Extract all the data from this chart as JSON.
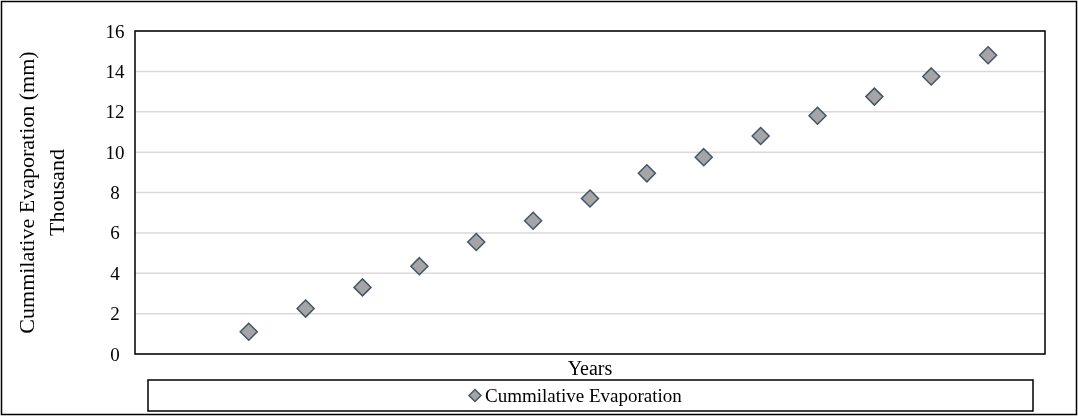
{
  "chart_data": {
    "type": "scatter",
    "xlabel": "Years",
    "ylabel": "Cummilative Evaporation (mm) Thousand",
    "categories": [
      null,
      null,
      null,
      null,
      null,
      null,
      null,
      null,
      null,
      null,
      null,
      null,
      null,
      null,
      null,
      null,
      null
    ],
    "series": [
      {
        "name": "Cummilative Evaporation",
        "color": "#a5a5a5",
        "values": [
          null,
          null,
          1.1,
          2.25,
          3.3,
          4.35,
          5.55,
          6.6,
          7.7,
          8.95,
          9.75,
          10.8,
          11.8,
          12.75,
          13.75,
          14.8,
          null
        ]
      }
    ],
    "ylim": [
      0,
      16
    ],
    "yticks": [
      0,
      2,
      4,
      6,
      8,
      10,
      12,
      14,
      16
    ],
    "grid": "y",
    "legend": "bottom",
    "marker": "diamond"
  }
}
